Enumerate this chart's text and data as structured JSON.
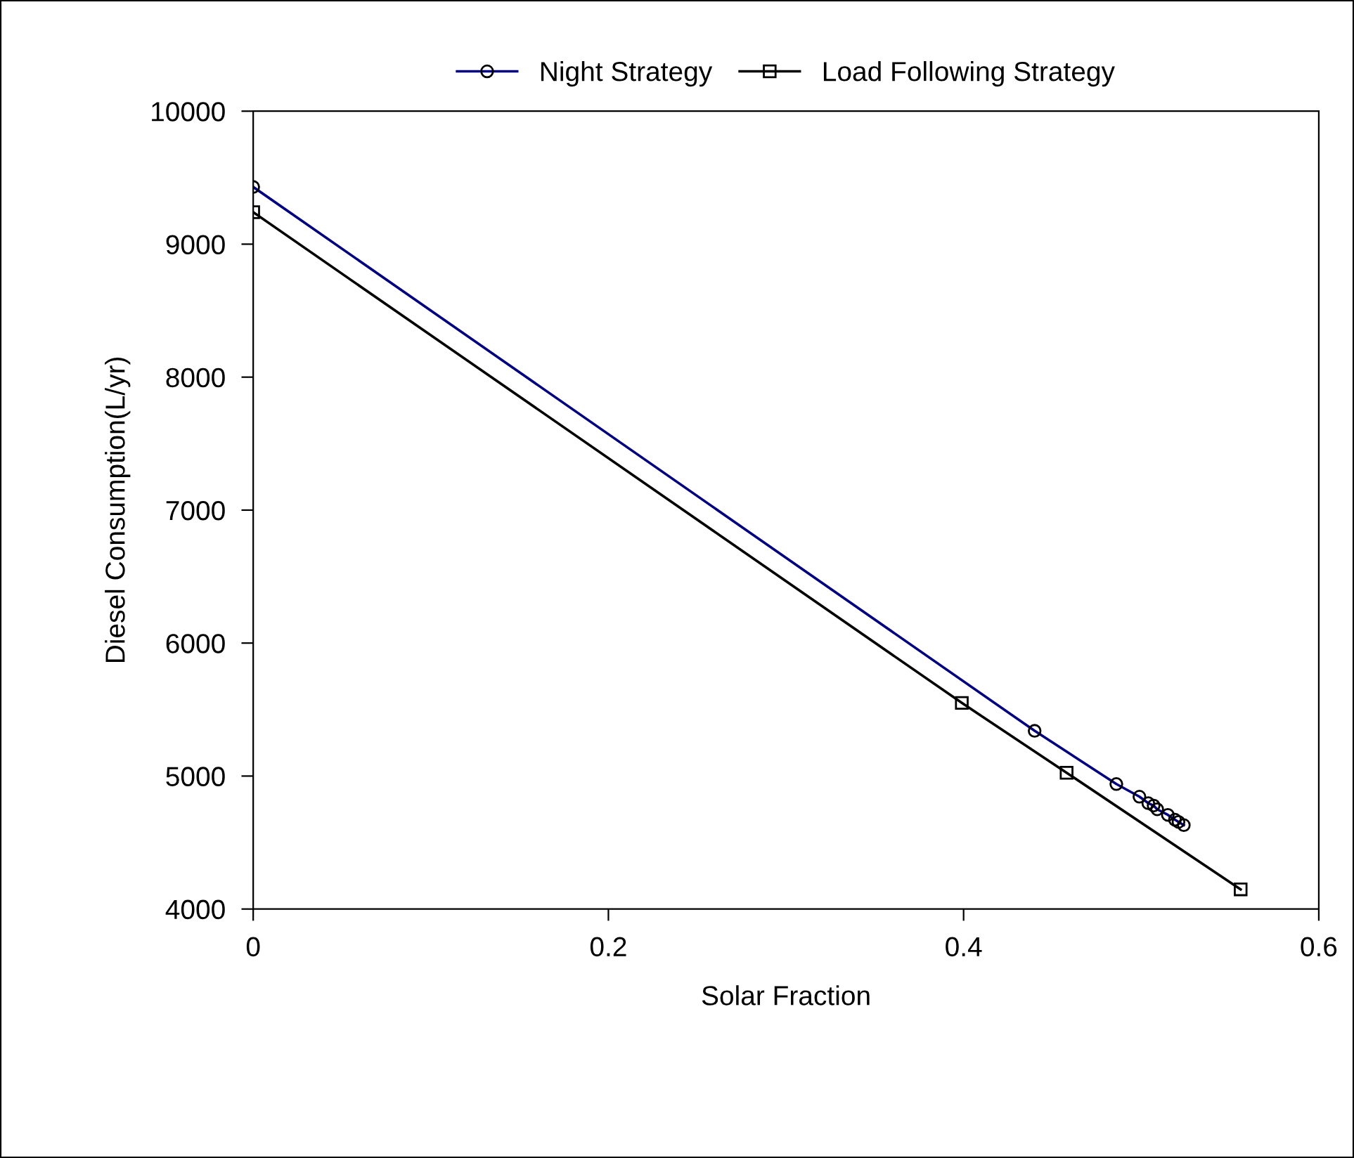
{
  "chart_data": {
    "type": "line",
    "xlabel": "Solar Fraction",
    "ylabel": "Diesel Consumption(L/yr)",
    "series": [
      {
        "name": "Night Strategy",
        "color": "#000080",
        "marker": "circle",
        "x": [
          0,
          0.44,
          0.486,
          0.499,
          0.504,
          0.507,
          0.509,
          0.515,
          0.519,
          0.521,
          0.524
        ],
        "values": [
          9430,
          5340,
          4940,
          4845,
          4796,
          4778,
          4750,
          4708,
          4672,
          4655,
          4631
        ]
      },
      {
        "name": "Load Following Strategy",
        "color": "#000000",
        "marker": "square",
        "x": [
          0,
          0.399,
          0.458,
          0.556
        ],
        "values": [
          9240,
          5550,
          5025,
          4148
        ]
      }
    ],
    "xlim": [
      0,
      0.6
    ],
    "xticks": [
      0,
      0.2,
      0.4,
      0.6
    ],
    "ylim": [
      4000,
      10000
    ],
    "yticks": [
      4000,
      5000,
      6000,
      7000,
      8000,
      9000,
      10000
    ],
    "grid": false,
    "legend": "top",
    "line_style": "solid"
  }
}
